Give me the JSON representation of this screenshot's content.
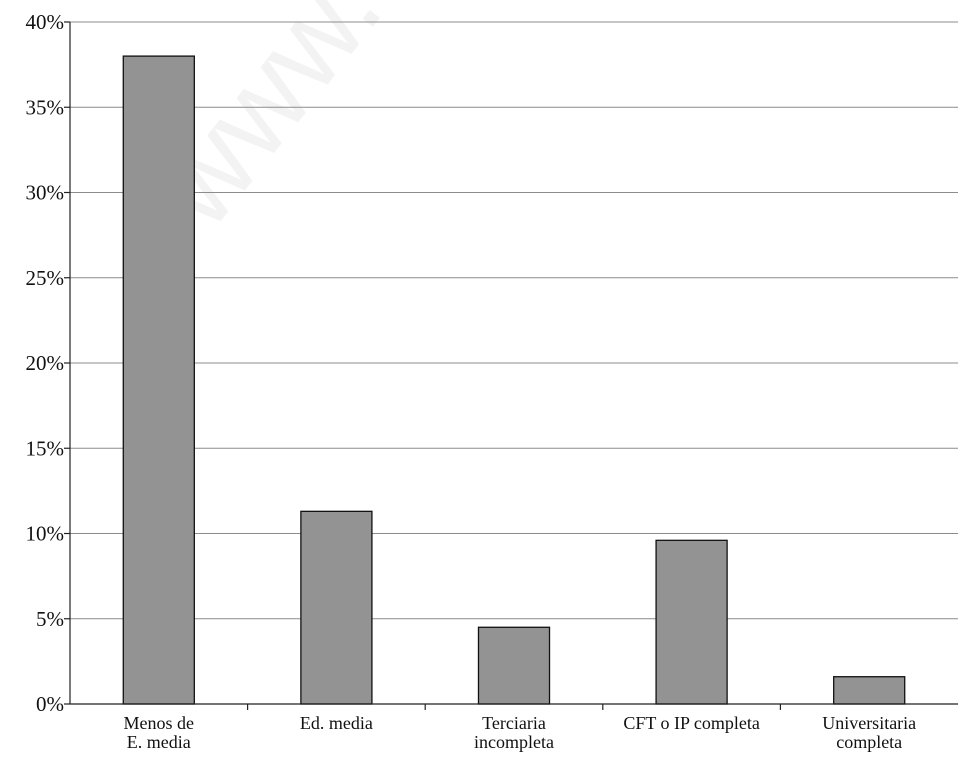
{
  "watermark": "www.c",
  "chart_data": {
    "type": "bar",
    "categories": [
      [
        "Menos de",
        "E. media"
      ],
      [
        "Ed. media"
      ],
      [
        "Terciaria",
        "incompleta"
      ],
      [
        "CFT o IP completa"
      ],
      [
        "Universitaria",
        "completa"
      ]
    ],
    "values": [
      38.0,
      11.3,
      4.5,
      9.6,
      1.6
    ],
    "ylim": [
      0,
      40
    ],
    "yticks": [
      0,
      5,
      10,
      15,
      20,
      25,
      30,
      35,
      40
    ],
    "ytick_suffix": "%",
    "grid": true,
    "bar_color": "#939393",
    "legend": "none"
  }
}
